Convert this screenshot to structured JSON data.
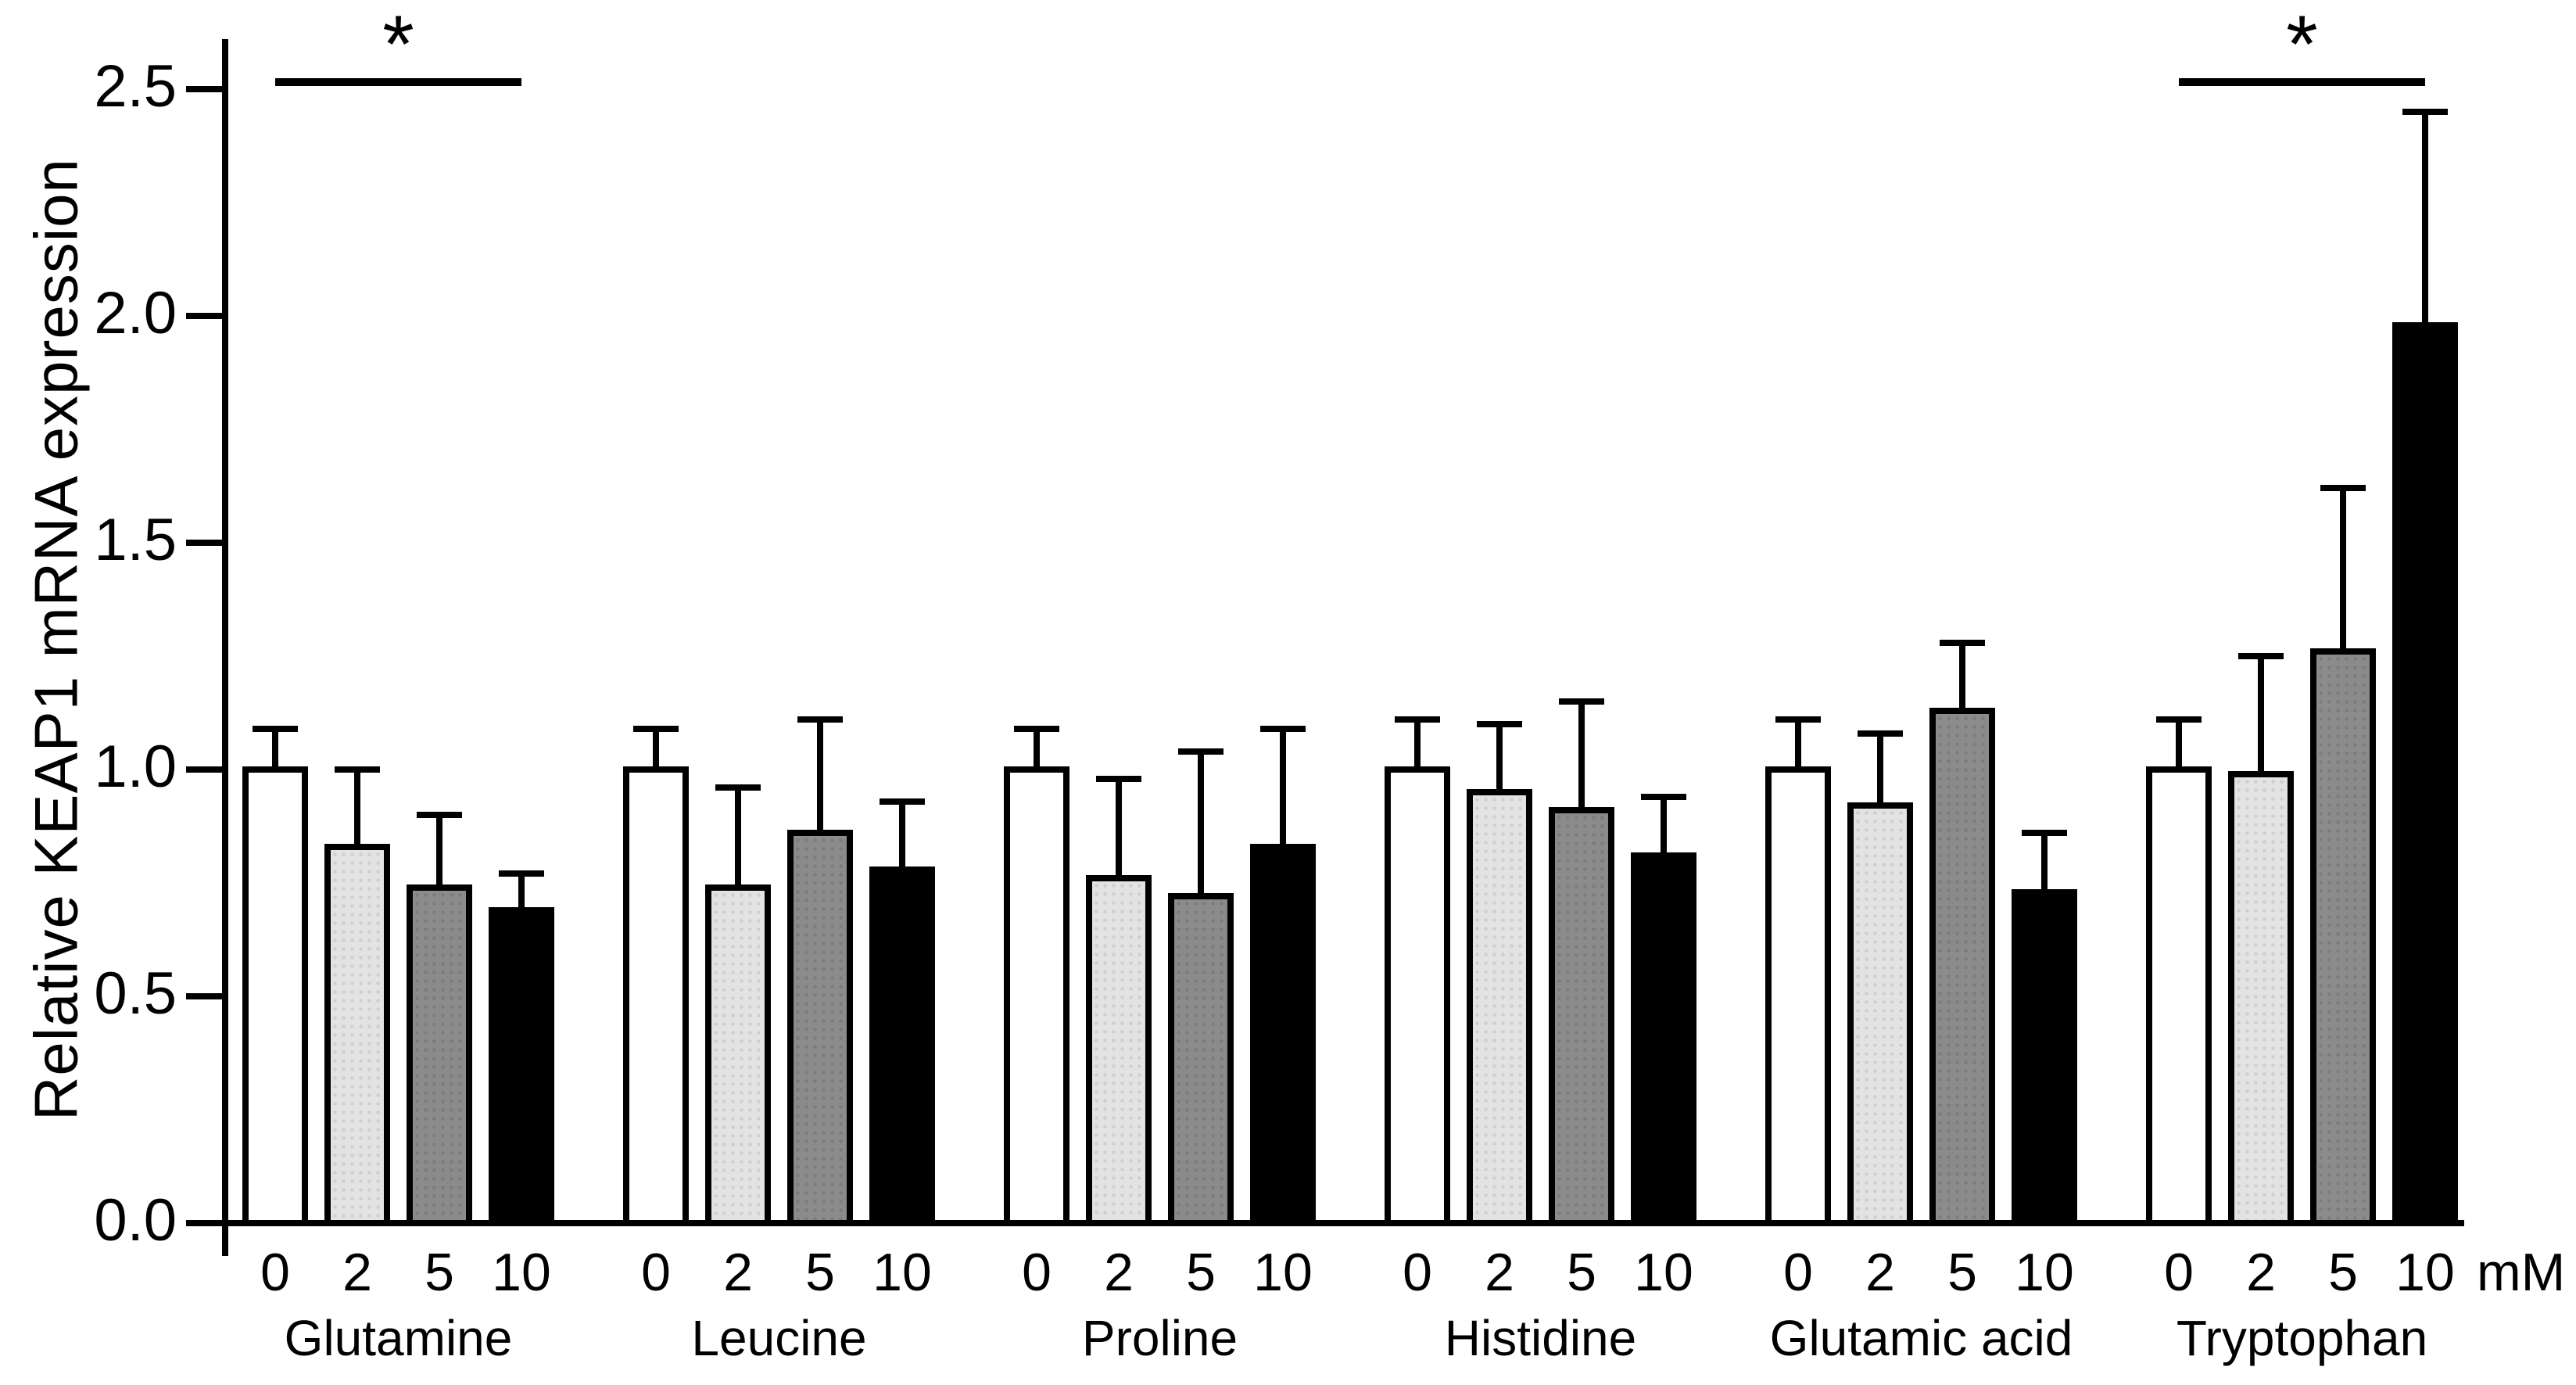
{
  "figure": {
    "kind": "grouped bar chart with SD error bars",
    "background": "#ffffff",
    "foreground": "#000000"
  },
  "chart_data": {
    "type": "bar",
    "title": "",
    "ylabel": "Relative KEAP1 mRNA expression",
    "xlabel": "",
    "ylim": [
      0,
      2.6
    ],
    "yticks": [
      "0.0",
      "0.5",
      "1.0",
      "1.5",
      "2.0",
      "2.5"
    ],
    "grid": false,
    "legend": "none",
    "dose_labels": [
      "0",
      "2",
      "5",
      "10"
    ],
    "dose_unit": "mM",
    "series_fills": [
      "#ffffff",
      "#e3e3e3",
      "#8b8b8b",
      "#000000"
    ],
    "series_names": [
      "0 mM",
      "2 mM",
      "5 mM",
      "10 mM"
    ],
    "error_bar_direction": "upper",
    "groups": [
      {
        "name": "Glutamine",
        "values": [
          1.0,
          0.83,
          0.74,
          0.69
        ],
        "errors": [
          0.09,
          0.17,
          0.16,
          0.08
        ]
      },
      {
        "name": "Leucine",
        "values": [
          1.0,
          0.74,
          0.86,
          0.78
        ],
        "errors": [
          0.09,
          0.22,
          0.25,
          0.15
        ]
      },
      {
        "name": "Proline",
        "values": [
          1.0,
          0.76,
          0.72,
          0.83
        ],
        "errors": [
          0.09,
          0.22,
          0.32,
          0.26
        ]
      },
      {
        "name": "Histidine",
        "values": [
          1.0,
          0.95,
          0.91,
          0.81
        ],
        "errors": [
          0.11,
          0.15,
          0.24,
          0.13
        ]
      },
      {
        "name": "Glutamic acid",
        "values": [
          1.0,
          0.92,
          1.13,
          0.73
        ],
        "errors": [
          0.11,
          0.16,
          0.15,
          0.13
        ]
      },
      {
        "name": "Tryptophan",
        "values": [
          1.0,
          0.99,
          1.26,
          1.98
        ],
        "errors": [
          0.11,
          0.26,
          0.36,
          0.47
        ]
      }
    ],
    "significance": [
      {
        "group_index": 0,
        "from_bar": 0,
        "to_bar": 3,
        "label": "*",
        "y_value": 2.52
      },
      {
        "group_index": 5,
        "from_bar": 0,
        "to_bar": 3,
        "label": "*",
        "y_value": 2.52
      }
    ]
  }
}
